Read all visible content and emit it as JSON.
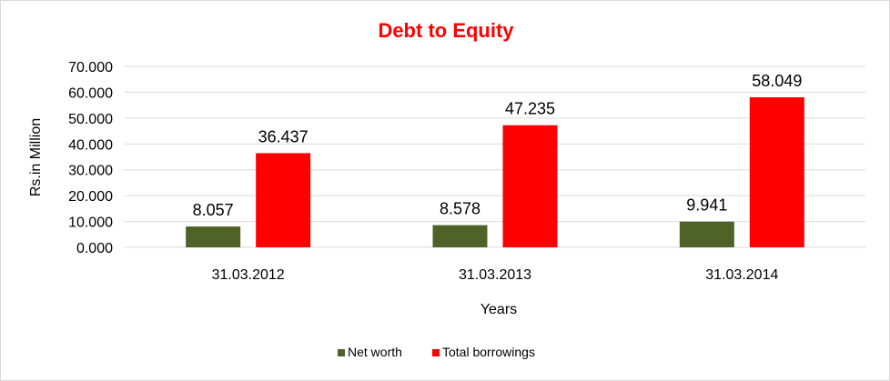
{
  "chart_data": {
    "type": "bar",
    "title": "Debt to Equity",
    "xlabel": "Years",
    "ylabel": "Rs.in Million",
    "categories": [
      "31.03.2012",
      "31.03.2013",
      "31.03.2014"
    ],
    "ylim": [
      0,
      70
    ],
    "yticks": [
      "0.000",
      "10.000",
      "20.000",
      "30.000",
      "40.000",
      "50.000",
      "60.000",
      "70.000"
    ],
    "series": [
      {
        "name": "Net worth",
        "values": [
          8.057,
          8.578,
          9.941
        ],
        "labels": [
          "8.057",
          "8.578",
          "9.941"
        ],
        "color": "#4f6228"
      },
      {
        "name": "Total borrowings",
        "values": [
          36.437,
          47.235,
          58.049
        ],
        "labels": [
          "36.437",
          "47.235",
          "58.049"
        ],
        "color": "#ff0000"
      }
    ],
    "grid": true,
    "legend_position": "bottom",
    "title_color": "#ff0000",
    "gridline_color": "#d9d9d9"
  }
}
